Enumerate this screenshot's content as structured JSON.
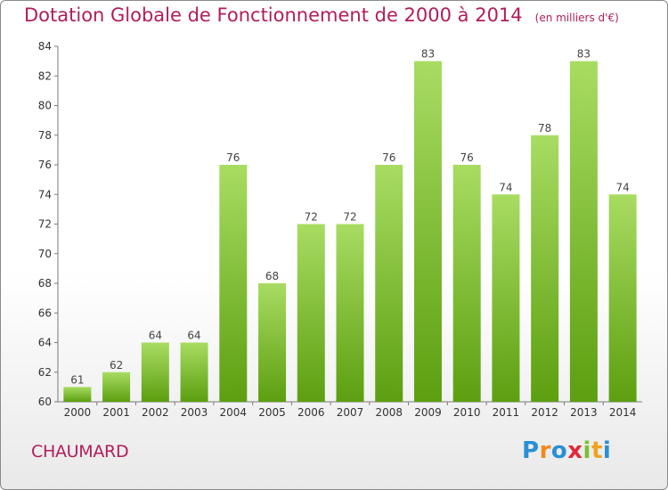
{
  "title": "Dotation Globale de Fonctionnement de 2000 à 2014",
  "subtitle": "(en milliers d'€)",
  "commune": "CHAUMARD",
  "logo": {
    "p": "P",
    "r": "r",
    "o": "o",
    "x": "x",
    "i1": "i",
    "t": "t",
    "i2": "i"
  },
  "colors": {
    "title": "#b11d5c",
    "bar_light": "#9fd45a",
    "bar_dark": "#5fa312"
  },
  "chart_data": {
    "type": "bar",
    "title": "Dotation Globale de Fonctionnement de 2000 à 2014",
    "subtitle": "(en milliers d'€)",
    "xlabel": "",
    "ylabel": "",
    "categories": [
      "2000",
      "2001",
      "2002",
      "2003",
      "2004",
      "2005",
      "2006",
      "2007",
      "2008",
      "2009",
      "2010",
      "2011",
      "2012",
      "2013",
      "2014"
    ],
    "values": [
      61,
      62,
      64,
      64,
      76,
      68,
      72,
      72,
      76,
      83,
      76,
      74,
      78,
      83,
      74
    ],
    "ylim": [
      60,
      84
    ],
    "yticks": [
      60,
      62,
      64,
      66,
      68,
      70,
      72,
      74,
      76,
      78,
      80,
      82,
      84
    ],
    "grid": false,
    "data_labels": true
  }
}
